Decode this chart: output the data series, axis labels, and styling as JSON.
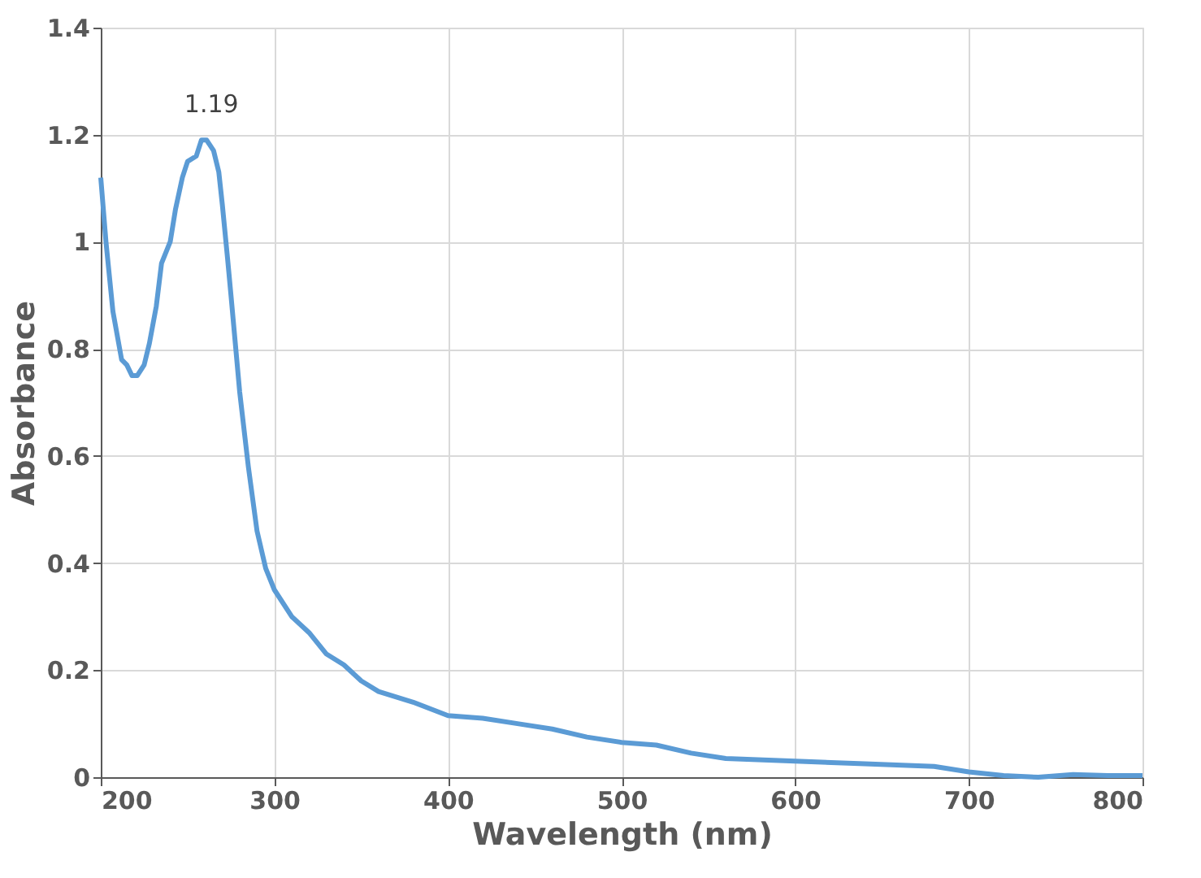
{
  "chart_data": {
    "type": "line",
    "xlabel": "Wavelength (nm)",
    "ylabel": "Absorbance",
    "x": [
      200,
      203,
      207,
      212,
      215,
      218,
      221,
      225,
      228,
      232,
      235,
      240,
      243,
      247,
      250,
      255,
      258,
      261,
      265,
      268,
      270,
      273,
      275,
      280,
      285,
      290,
      295,
      300,
      310,
      320,
      330,
      340,
      350,
      360,
      380,
      400,
      420,
      440,
      460,
      480,
      500,
      520,
      540,
      560,
      600,
      640,
      680,
      700,
      720,
      740,
      760,
      780,
      800
    ],
    "series": [
      {
        "color": "#5b9bd5",
        "values": [
          1.12,
          1.0,
          0.87,
          0.78,
          0.77,
          0.75,
          0.75,
          0.77,
          0.81,
          0.88,
          0.96,
          1.0,
          1.06,
          1.12,
          1.15,
          1.16,
          1.19,
          1.19,
          1.17,
          1.13,
          1.07,
          0.97,
          0.9,
          0.72,
          0.58,
          0.46,
          0.39,
          0.35,
          0.3,
          0.27,
          0.23,
          0.21,
          0.18,
          0.16,
          0.14,
          0.115,
          0.11,
          0.1,
          0.09,
          0.075,
          0.065,
          0.06,
          0.045,
          0.035,
          0.03,
          0.025,
          0.02,
          0.01,
          0.003,
          0.0,
          0.005,
          0.003,
          0.003
        ]
      }
    ],
    "annotations": [
      {
        "text": "1.19",
        "x": 260,
        "y": 1.19
      }
    ],
    "xlim": [
      200,
      800
    ],
    "xticks": [
      200,
      300,
      400,
      500,
      600,
      700,
      800
    ],
    "ylim": [
      0,
      1.4
    ],
    "yticks": [
      0,
      0.2,
      0.4,
      0.6,
      0.8,
      1,
      1.2,
      1.4
    ],
    "grid": true,
    "marker": "none",
    "line_style": "solid"
  }
}
